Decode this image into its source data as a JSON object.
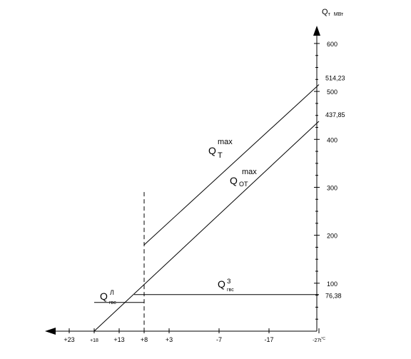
{
  "chart_data": {
    "type": "line",
    "y_axis_label": {
      "main": "Q",
      "sub": "т",
      "unit": "МВт"
    },
    "y_ticks": [
      {
        "value": 100,
        "label": "100"
      },
      {
        "value": 200,
        "label": "200"
      },
      {
        "value": 300,
        "label": "300"
      },
      {
        "value": 400,
        "label": "400"
      },
      {
        "value": 500,
        "label": "500"
      },
      {
        "value": 600,
        "label": "600"
      }
    ],
    "x_ticks": [
      {
        "value": 23,
        "label": "+23"
      },
      {
        "value": 18,
        "label": "+18"
      },
      {
        "value": 13,
        "label": "+13"
      },
      {
        "value": 8,
        "label": "+8"
      },
      {
        "value": 3,
        "label": "+3"
      },
      {
        "value": -7,
        "label": "-7"
      },
      {
        "value": -17,
        "label": "-17"
      },
      {
        "value": -27,
        "label": "-27t",
        "unit": "°C"
      }
    ],
    "value_labels": [
      {
        "value": 514.23,
        "label": "514,23"
      },
      {
        "value": 437.85,
        "label": "437,85"
      },
      {
        "value": 76.38,
        "label": "76,38"
      }
    ],
    "series": [
      {
        "name": "Q_T_max",
        "label": {
          "main": "Q",
          "sup": "max",
          "sub": "T"
        },
        "points": [
          {
            "x": 8,
            "y": 180
          },
          {
            "x": -27,
            "y": 514.23
          }
        ]
      },
      {
        "name": "Q_OT_max",
        "label": {
          "main": "Q",
          "sup": "max",
          "sub": "OT"
        },
        "points": [
          {
            "x": 18,
            "y": 0
          },
          {
            "x": -27,
            "y": 437.85
          }
        ]
      },
      {
        "name": "Q_gvs_z",
        "label": {
          "main": "Q",
          "sup": "З",
          "sub": "гвс"
        },
        "points": [
          {
            "x": 10,
            "y": 76.38
          },
          {
            "x": -27,
            "y": 76.38
          }
        ]
      },
      {
        "name": "Q_gvs_l",
        "label": {
          "main": "Q",
          "sup": "Л",
          "sub": "гвс"
        },
        "points": [
          {
            "x": 18,
            "y": 60
          },
          {
            "x": 8,
            "y": 60
          }
        ]
      }
    ],
    "reference_line": {
      "x": 8,
      "y_top": 290,
      "style": "dashed"
    }
  }
}
